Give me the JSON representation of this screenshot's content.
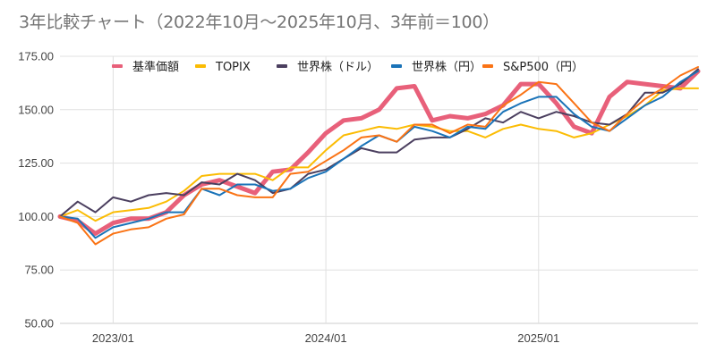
{
  "chart_data": {
    "type": "line",
    "title": "3年比較チャート（2022年10月〜2025年10月、3年前＝100）",
    "xlabel": "",
    "ylabel": "",
    "ylim": [
      50,
      175
    ],
    "yticks": [
      "50.00",
      "75.00",
      "100.00",
      "125.00",
      "150.00",
      "175.00"
    ],
    "xticks": [
      {
        "label": "2023/01",
        "index": 3
      },
      {
        "label": "2024/01",
        "index": 15
      },
      {
        "label": "2025/01",
        "index": 27
      }
    ],
    "grid": true,
    "legend_position": "top",
    "x": [
      "2022/10",
      "2022/11",
      "2022/12",
      "2023/01",
      "2023/02",
      "2023/03",
      "2023/04",
      "2023/05",
      "2023/06",
      "2023/07",
      "2023/08",
      "2023/09",
      "2023/10",
      "2023/11",
      "2023/12",
      "2024/01",
      "2024/02",
      "2024/03",
      "2024/04",
      "2024/05",
      "2024/06",
      "2024/07",
      "2024/08",
      "2024/09",
      "2024/10",
      "2024/11",
      "2024/12",
      "2025/01",
      "2025/02",
      "2025/03",
      "2025/04",
      "2025/05",
      "2025/06",
      "2025/07",
      "2025/08",
      "2025/09",
      "2025/10"
    ],
    "series": [
      {
        "name": "基準価額",
        "color": "#e8607a",
        "width": 5,
        "values": [
          100,
          98,
          92,
          97,
          99,
          99,
          102,
          110,
          115,
          117,
          114,
          111,
          121,
          122,
          130,
          139,
          145,
          146,
          150,
          160,
          161,
          145,
          147,
          146,
          148,
          152,
          162,
          162,
          153,
          142,
          139,
          156,
          163,
          162,
          161,
          160,
          168
        ]
      },
      {
        "name": "TOPIX",
        "color": "#fbbc04",
        "width": 2,
        "values": [
          100,
          103,
          98,
          102,
          103,
          104,
          107,
          112,
          119,
          120,
          120,
          120,
          117,
          123,
          123,
          131,
          138,
          140,
          142,
          141,
          143,
          142,
          140,
          140,
          137,
          141,
          143,
          141,
          140,
          137,
          139,
          143,
          147,
          152,
          159,
          160,
          160
        ]
      },
      {
        "name": "世界株（ドル）",
        "color": "#4b3f5f",
        "width": 2,
        "values": [
          100,
          107,
          102,
          109,
          107,
          110,
          111,
          110,
          116,
          115,
          120,
          117,
          111,
          113,
          120,
          122,
          127,
          132,
          130,
          130,
          136,
          137,
          137,
          141,
          146,
          144,
          149,
          146,
          149,
          147,
          144,
          143,
          148,
          158,
          158,
          162,
          169
        ]
      },
      {
        "name": "世界株（円）",
        "color": "#1a73b8",
        "width": 2,
        "values": [
          100,
          99,
          90,
          95,
          97,
          99,
          102,
          102,
          113,
          110,
          115,
          115,
          112,
          113,
          118,
          121,
          127,
          133,
          138,
          135,
          142,
          140,
          137,
          142,
          141,
          149,
          153,
          156,
          156,
          148,
          142,
          140,
          146,
          152,
          156,
          163,
          168
        ]
      },
      {
        "name": "S&P500（円）",
        "color": "#fa7315",
        "width": 2,
        "values": [
          100,
          97,
          87,
          92,
          94,
          95,
          99,
          101,
          113,
          113,
          110,
          109,
          109,
          120,
          121,
          126,
          131,
          137,
          138,
          135,
          143,
          143,
          139,
          143,
          142,
          152,
          157,
          163,
          162,
          153,
          144,
          140,
          148,
          155,
          160,
          166,
          170
        ]
      }
    ]
  }
}
